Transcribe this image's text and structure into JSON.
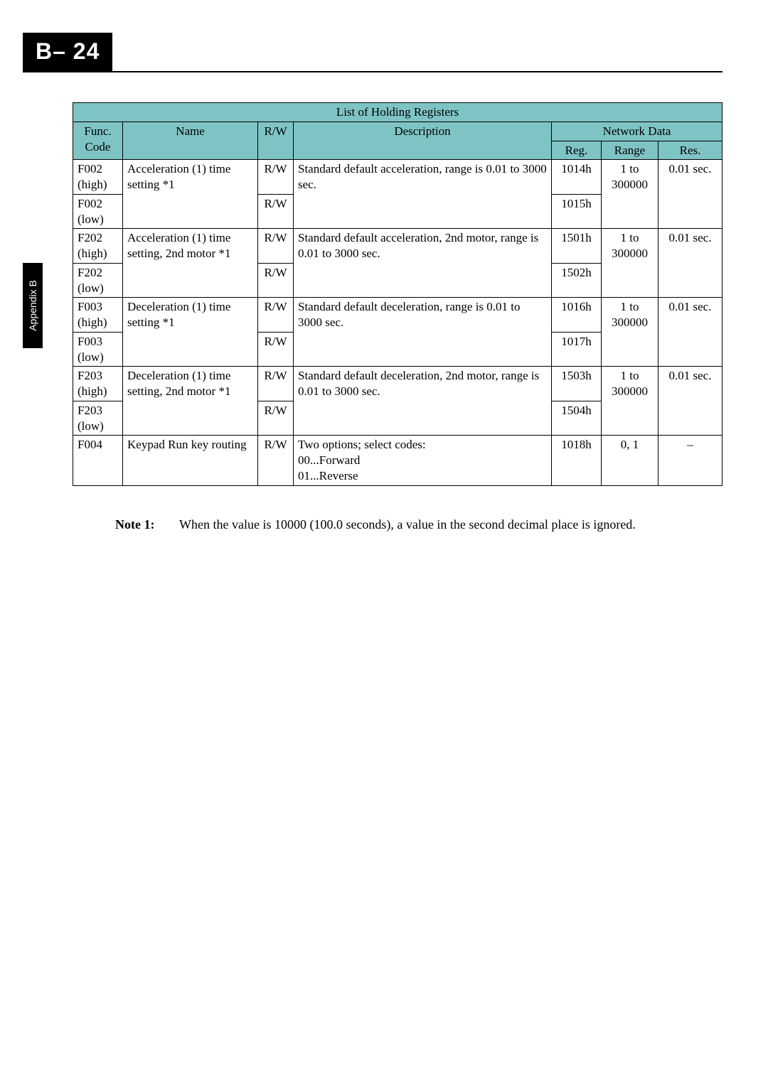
{
  "page": {
    "header_tab": "B– 24",
    "side_tab": "Appendix B"
  },
  "table": {
    "title": "List of Holding Registers",
    "headers": {
      "func_code": "Func. Code",
      "name": "Name",
      "rw": "R/W",
      "description": "Description",
      "network_data": "Network Data",
      "reg": "Reg.",
      "range": "Range",
      "res": "Res."
    },
    "rows": [
      {
        "code": "F002 (high)",
        "name": "Acceleration (1) time setting *1",
        "rw": "R/W",
        "desc": "Standard default acceleration, range is 0.01 to 3000 sec.",
        "reg": "1014h",
        "range": "1 to 300000",
        "res": "0.01 sec."
      },
      {
        "code": "F002 (low)",
        "name": "",
        "rw": "R/W",
        "desc": "",
        "reg": "1015h",
        "range": "",
        "res": ""
      },
      {
        "code": "F202 (high)",
        "name": "Acceleration (1) time setting, 2nd motor *1",
        "rw": "R/W",
        "desc": "Standard default acceleration, 2nd motor, range is 0.01 to 3000 sec.",
        "reg": "1501h",
        "range": "1 to 300000",
        "res": "0.01 sec."
      },
      {
        "code": "F202 (low)",
        "name": "",
        "rw": "R/W",
        "desc": "",
        "reg": "1502h",
        "range": "",
        "res": ""
      },
      {
        "code": "F003 (high)",
        "name": "Deceleration (1) time setting *1",
        "rw": "R/W",
        "desc": "Standard default deceleration, range is 0.01 to 3000 sec.",
        "reg": "1016h",
        "range": "1 to 300000",
        "res": "0.01 sec."
      },
      {
        "code": "F003 (low)",
        "name": "",
        "rw": "R/W",
        "desc": "",
        "reg": "1017h",
        "range": "",
        "res": ""
      },
      {
        "code": "F203 (high)",
        "name": "Deceleration (1) time setting, 2nd motor *1",
        "rw": "R/W",
        "desc": "Standard default deceleration, 2nd motor, range is 0.01 to 3000 sec.",
        "reg": "1503h",
        "range": "1 to 300000",
        "res": "0.01 sec."
      },
      {
        "code": "F203 (low)",
        "name": "",
        "rw": "R/W",
        "desc": "",
        "reg": "1504h",
        "range": "",
        "res": ""
      },
      {
        "code": "F004",
        "name": "Keypad Run key routing",
        "rw": "R/W",
        "desc": "Two options; select codes:\n00...Forward\n01...Reverse",
        "reg": "1018h",
        "range": "0, 1",
        "res": "–"
      }
    ]
  },
  "note": {
    "label": "Note 1:",
    "text": "When the value is 10000 (100.0 seconds), a value in the second decimal place is ignored."
  },
  "colors": {
    "header_bg": "#7fc4c4",
    "tab_bg": "#000000",
    "tab_fg": "#ffffff",
    "page_bg": "#ffffff",
    "border": "#000000"
  }
}
